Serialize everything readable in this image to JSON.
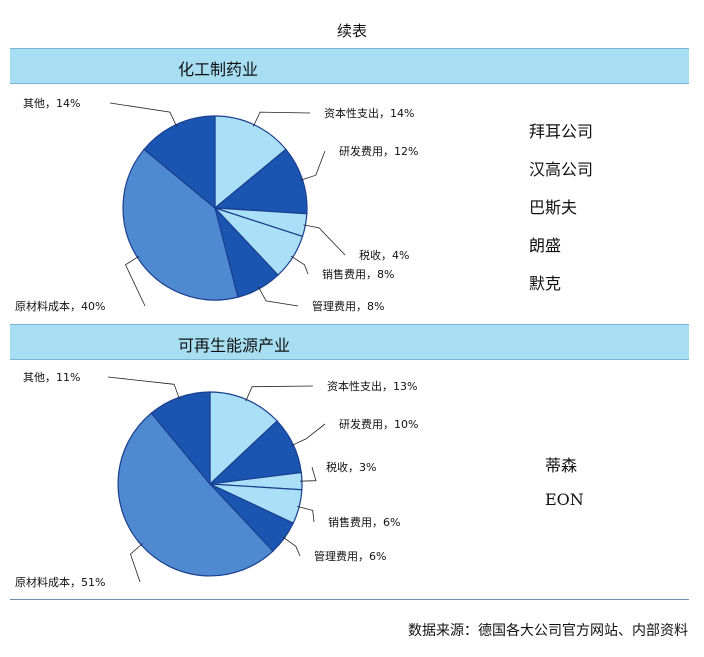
{
  "page_title": "续表",
  "source": "数据来源：德国各大公司官方网站、内部资料",
  "colors": {
    "light": "#a9e0f7",
    "mid": "#4f8ad1",
    "dark": "#1a55b2",
    "edge": "#1a3f8f"
  },
  "sections": [
    {
      "title": "化工制药业",
      "companies": [
        "拜耳公司",
        "汉高公司",
        "巴斯夫",
        "朗盛",
        "默克"
      ]
    },
    {
      "title": "可再生能源产业",
      "companies": [
        "蒂森",
        "EON"
      ]
    }
  ],
  "chart_data": [
    {
      "type": "pie",
      "slices": [
        {
          "label": "资本性支出，14%",
          "value": 14,
          "color": "light"
        },
        {
          "label": "研发费用，12%",
          "value": 12,
          "color": "dark"
        },
        {
          "label": "税收，4%",
          "value": 4,
          "color": "light"
        },
        {
          "label": "销售费用，8%",
          "value": 8,
          "color": "light"
        },
        {
          "label": "管理费用，8%",
          "value": 8,
          "color": "dark"
        },
        {
          "label": "原材料成本，40%",
          "value": 40,
          "color": "mid"
        },
        {
          "label": "其他，14%",
          "value": 14,
          "color": "dark"
        }
      ]
    },
    {
      "type": "pie",
      "slices": [
        {
          "label": "资本性支出，13%",
          "value": 13,
          "color": "light"
        },
        {
          "label": "研发费用，10%",
          "value": 10,
          "color": "dark"
        },
        {
          "label": "税收，3%",
          "value": 3,
          "color": "light"
        },
        {
          "label": "销售费用，6%",
          "value": 6,
          "color": "light"
        },
        {
          "label": "管理费用，6%",
          "value": 6,
          "color": "dark"
        },
        {
          "label": "原材料成本，51%",
          "value": 51,
          "color": "mid"
        },
        {
          "label": "其他，11%",
          "value": 11,
          "color": "dark"
        }
      ]
    }
  ]
}
